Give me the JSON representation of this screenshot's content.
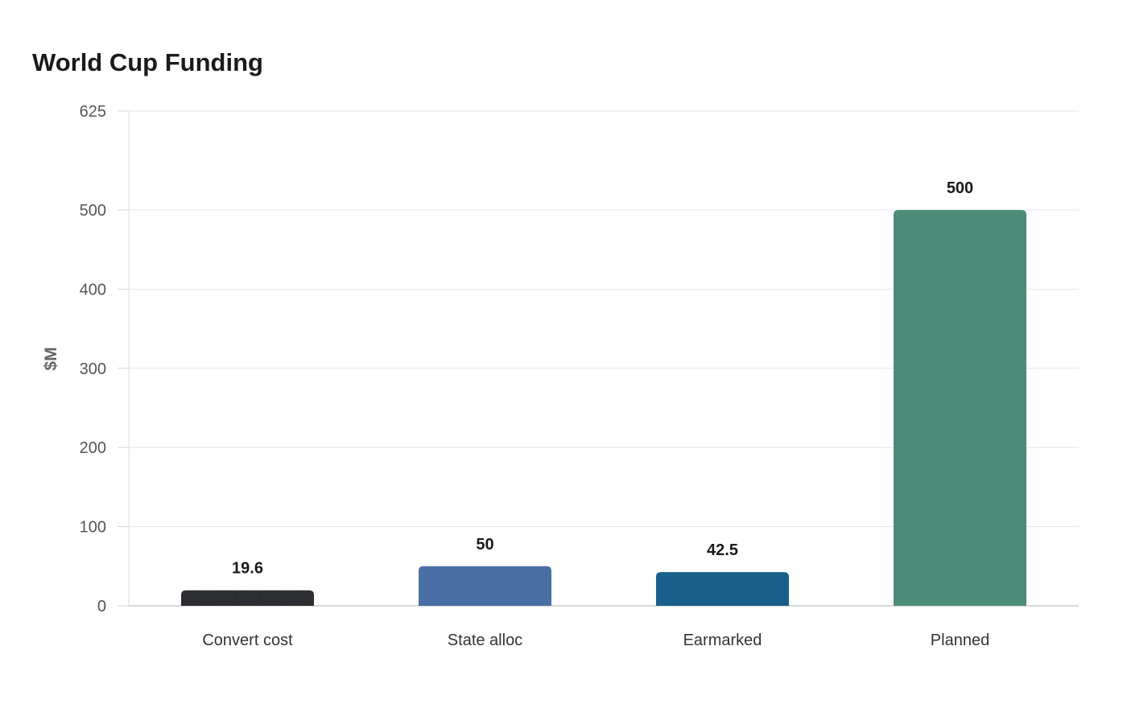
{
  "chart_data": {
    "type": "bar",
    "title": "World Cup Funding",
    "ylabel": "$M",
    "xlabel": "",
    "categories": [
      "Convert cost",
      "State alloc",
      "Earmarked",
      "Planned"
    ],
    "values": [
      19.6,
      50,
      42.5,
      500
    ],
    "data_labels": [
      "19.6",
      "50",
      "42.5",
      "500"
    ],
    "ylim": [
      0,
      625
    ],
    "yticks": [
      0,
      100,
      200,
      300,
      400,
      500,
      625
    ],
    "ytick_labels": [
      "0",
      "100",
      "200",
      "300",
      "400",
      "500",
      "625"
    ],
    "colors": [
      "#2b2d30",
      "#4a6fa5",
      "#17608a",
      "#4e8c7a"
    ],
    "grid": true,
    "legend": "none"
  }
}
